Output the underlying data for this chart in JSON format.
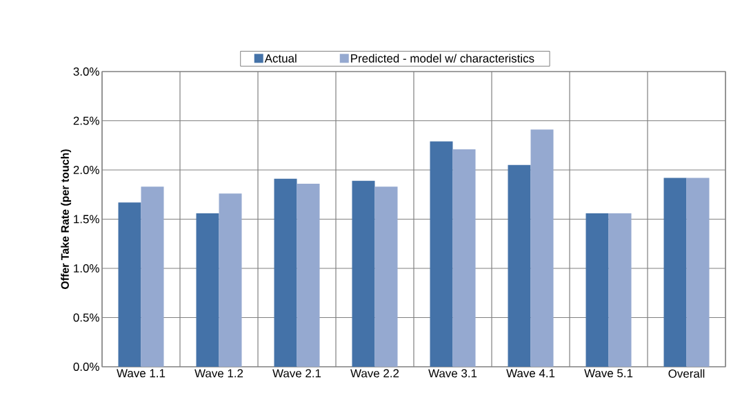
{
  "chart_data": {
    "type": "bar",
    "ylabel": "Offer Take Rate (per touch)",
    "categories": [
      "Wave 1.1",
      "Wave 1.2",
      "Wave 2.1",
      "Wave 2.2",
      "Wave 3.1",
      "Wave 4.1",
      "Wave 5.1",
      "Overall"
    ],
    "series": [
      {
        "name": "Actual",
        "color": "#4472a8",
        "values": [
          1.67,
          1.56,
          1.91,
          1.89,
          2.29,
          2.05,
          1.56,
          1.92
        ]
      },
      {
        "name": "Predicted - model w/ characteristics",
        "color": "#95a9d0",
        "values": [
          1.83,
          1.76,
          1.86,
          1.83,
          2.21,
          2.41,
          1.56,
          1.92
        ]
      }
    ],
    "ylim": [
      0,
      3
    ],
    "yticks": [
      {
        "value": 0,
        "label": "0.0%"
      },
      {
        "value": 0.5,
        "label": "0.5%"
      },
      {
        "value": 1,
        "label": "1.0%"
      },
      {
        "value": 1.5,
        "label": "1.5%"
      },
      {
        "value": 2,
        "label": "2.0%"
      },
      {
        "value": 2.5,
        "label": "2.5%"
      },
      {
        "value": 3,
        "label": "3.0%"
      }
    ],
    "grid": true,
    "legend": "top"
  }
}
